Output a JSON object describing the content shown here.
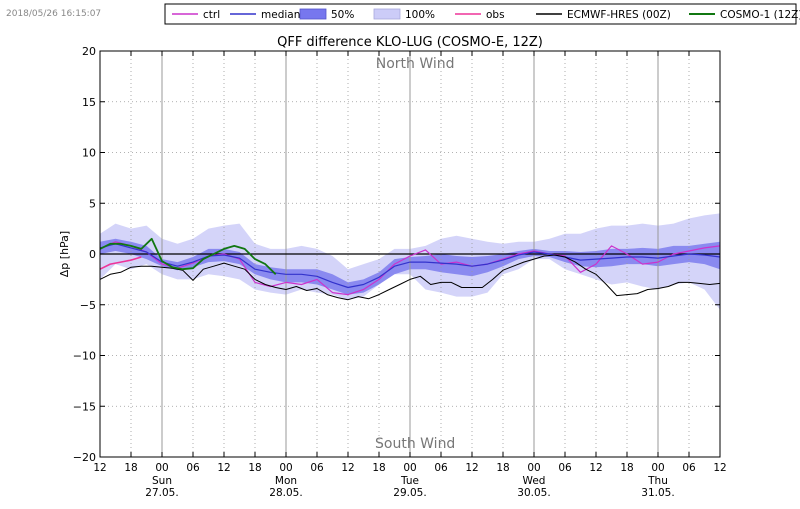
{
  "timestamp": "2018/05/26 16:15:07",
  "chart_data": {
    "type": "line",
    "title": "QFF difference KLO-LUG (COSMO-E, 12Z)",
    "ylabel": "Δp [hPa]",
    "ylim": [
      -20,
      20
    ],
    "yticks": [
      -20,
      -15,
      -10,
      -5,
      0,
      5,
      10,
      15,
      20
    ],
    "xlim": [
      0,
      120
    ],
    "x_unit": "hours since 26.05. 12Z",
    "xticks": [
      {
        "x": 0,
        "label": "12"
      },
      {
        "x": 6,
        "label": "18"
      },
      {
        "x": 12,
        "label": "00"
      },
      {
        "x": 18,
        "label": "06"
      },
      {
        "x": 24,
        "label": "12"
      },
      {
        "x": 30,
        "label": "18"
      },
      {
        "x": 36,
        "label": "00"
      },
      {
        "x": 42,
        "label": "06"
      },
      {
        "x": 48,
        "label": "12"
      },
      {
        "x": 54,
        "label": "18"
      },
      {
        "x": 60,
        "label": "00"
      },
      {
        "x": 66,
        "label": "06"
      },
      {
        "x": 72,
        "label": "12"
      },
      {
        "x": 78,
        "label": "18"
      },
      {
        "x": 84,
        "label": "00"
      },
      {
        "x": 90,
        "label": "06"
      },
      {
        "x": 96,
        "label": "12"
      },
      {
        "x": 102,
        "label": "18"
      },
      {
        "x": 108,
        "label": "00"
      },
      {
        "x": 114,
        "label": "06"
      },
      {
        "x": 120,
        "label": "12"
      }
    ],
    "day_labels": [
      {
        "x": 12,
        "day": "Sun",
        "date": "27.05."
      },
      {
        "x": 36,
        "day": "Mon",
        "date": "28.05."
      },
      {
        "x": 60,
        "day": "Tue",
        "date": "29.05."
      },
      {
        "x": 84,
        "day": "Wed",
        "date": "30.05."
      },
      {
        "x": 108,
        "day": "Thu",
        "date": "31.05."
      }
    ],
    "annotations": [
      {
        "text": "North Wind",
        "x": 61,
        "y": 18.8
      },
      {
        "text": "South Wind",
        "x": 61,
        "y": -18.6
      }
    ],
    "legend": {
      "placement": "top-right",
      "entries": [
        {
          "label": "ctrl",
          "kind": "line",
          "color": "#cc33cc"
        },
        {
          "label": "median",
          "kind": "line",
          "color": "#3333cc"
        },
        {
          "label": "50%",
          "kind": "patch",
          "color": "#7777ee"
        },
        {
          "label": "100%",
          "kind": "patch",
          "color": "#ccccf8"
        },
        {
          "label": "obs",
          "kind": "line",
          "color": "#ee3399"
        },
        {
          "label": "ECMWF-HRES (00Z)",
          "kind": "line",
          "color": "#000000"
        },
        {
          "label": "COSMO-1 (12Z)",
          "kind": "line",
          "color": "#117711"
        }
      ]
    },
    "band100": {
      "x": [
        0,
        3,
        6,
        9,
        12,
        15,
        18,
        21,
        24,
        27,
        30,
        33,
        36,
        39,
        42,
        45,
        48,
        51,
        54,
        57,
        60,
        63,
        66,
        69,
        72,
        75,
        78,
        81,
        84,
        87,
        90,
        93,
        96,
        99,
        102,
        105,
        108,
        111,
        114,
        117,
        120
      ],
      "upper": [
        2.0,
        3.0,
        2.5,
        2.8,
        1.5,
        1.0,
        1.5,
        2.5,
        2.8,
        3.0,
        1.0,
        0.5,
        0.5,
        0.8,
        0.5,
        -0.2,
        -1.5,
        -1.0,
        -0.5,
        0.5,
        0.5,
        0.8,
        1.5,
        1.8,
        1.5,
        1.2,
        1.0,
        1.2,
        1.2,
        1.5,
        2.0,
        2.0,
        2.5,
        2.8,
        2.8,
        3.0,
        2.8,
        3.0,
        3.5,
        3.8,
        4.0
      ],
      "lower": [
        -2.5,
        -1.0,
        -1.5,
        -1.0,
        -2.0,
        -2.5,
        -2.5,
        -2.0,
        -2.2,
        -2.5,
        -3.5,
        -3.8,
        -4.0,
        -3.5,
        -3.8,
        -4.0,
        -4.5,
        -4.2,
        -3.0,
        -2.0,
        -2.0,
        -3.5,
        -3.8,
        -4.2,
        -4.2,
        -3.8,
        -2.0,
        -1.5,
        -0.5,
        -0.5,
        -1.5,
        -2.0,
        -2.5,
        -3.0,
        -2.8,
        -3.2,
        -3.5,
        -3.0,
        -2.8,
        -3.5,
        -5.5
      ]
    },
    "band50": {
      "x": [
        0,
        3,
        6,
        9,
        12,
        15,
        18,
        21,
        24,
        27,
        30,
        33,
        36,
        39,
        42,
        45,
        48,
        51,
        54,
        57,
        60,
        63,
        66,
        69,
        72,
        75,
        78,
        81,
        84,
        87,
        90,
        93,
        96,
        99,
        102,
        105,
        108,
        111,
        114,
        117,
        120
      ],
      "upper": [
        1.2,
        1.5,
        1.2,
        0.8,
        -0.5,
        -0.8,
        -0.3,
        0.5,
        0.5,
        0.2,
        -1.0,
        -1.3,
        -1.5,
        -1.5,
        -1.5,
        -2.0,
        -2.8,
        -2.5,
        -1.8,
        -0.5,
        -0.3,
        -0.2,
        0.0,
        -0.2,
        -0.3,
        -0.2,
        0.0,
        0.3,
        0.5,
        0.3,
        0.3,
        0.2,
        0.3,
        0.5,
        0.5,
        0.6,
        0.5,
        0.8,
        0.8,
        1.0,
        1.2
      ],
      "lower": [
        0.0,
        0.3,
        0.0,
        -0.5,
        -1.2,
        -1.6,
        -1.3,
        -0.8,
        -0.7,
        -1.0,
        -2.0,
        -2.5,
        -2.8,
        -2.8,
        -3.0,
        -3.5,
        -4.0,
        -3.8,
        -3.0,
        -2.0,
        -1.5,
        -1.5,
        -1.8,
        -2.0,
        -2.2,
        -1.8,
        -1.2,
        -0.5,
        -0.2,
        -0.3,
        -0.8,
        -1.2,
        -1.3,
        -1.2,
        -1.0,
        -1.0,
        -1.2,
        -1.0,
        -0.8,
        -1.0,
        -1.5
      ]
    },
    "series": [
      {
        "name": "ctrl",
        "color": "#cc33cc",
        "width": 1.2,
        "x": [
          0,
          3,
          6,
          9,
          12,
          15,
          18,
          21,
          24,
          27,
          30,
          33,
          36,
          39,
          42,
          45,
          48,
          51,
          54,
          57,
          60,
          63,
          66,
          69,
          72,
          75,
          78,
          81,
          84,
          87,
          90,
          93,
          96,
          99,
          102,
          105,
          108,
          111,
          114,
          117,
          120
        ],
        "y": [
          0.5,
          1.2,
          0.8,
          0.2,
          -1.0,
          -1.4,
          -0.9,
          -0.2,
          0.0,
          -0.5,
          -2.8,
          -3.2,
          -2.8,
          -3.0,
          -2.5,
          -3.8,
          -4.0,
          -3.5,
          -2.5,
          -1.0,
          -0.2,
          0.4,
          -1.0,
          -0.8,
          -1.2,
          -1.0,
          -0.5,
          0.0,
          0.3,
          0.0,
          -0.2,
          -1.8,
          -1.0,
          0.8,
          0.0,
          -1.0,
          -0.8,
          0.0,
          0.3,
          0.6,
          0.8
        ]
      },
      {
        "name": "median",
        "color": "#3333cc",
        "width": 1.2,
        "x": [
          0,
          3,
          6,
          9,
          12,
          15,
          18,
          21,
          24,
          27,
          30,
          33,
          36,
          39,
          42,
          45,
          48,
          51,
          54,
          57,
          60,
          63,
          66,
          69,
          72,
          75,
          78,
          81,
          84,
          87,
          90,
          93,
          96,
          99,
          102,
          105,
          108,
          111,
          114,
          117,
          120
        ],
        "y": [
          0.6,
          1.0,
          0.6,
          0.2,
          -0.8,
          -1.2,
          -0.8,
          -0.2,
          -0.1,
          -0.4,
          -1.5,
          -1.8,
          -2.0,
          -2.0,
          -2.2,
          -2.8,
          -3.3,
          -3.0,
          -2.3,
          -1.2,
          -0.8,
          -0.8,
          -0.9,
          -1.0,
          -1.2,
          -1.0,
          -0.6,
          -0.1,
          0.2,
          0.0,
          -0.3,
          -0.6,
          -0.5,
          -0.4,
          -0.3,
          -0.3,
          -0.4,
          -0.2,
          0.0,
          -0.1,
          -0.3
        ]
      },
      {
        "name": "obs",
        "color": "#ee3399",
        "width": 1.6,
        "x": [
          0,
          2,
          4,
          6,
          8
        ],
        "y": [
          -1.5,
          -1.0,
          -0.8,
          -0.6,
          -0.3
        ]
      },
      {
        "name": "ECMWF-HRES (00Z)",
        "color": "#000000",
        "width": 1.0,
        "x": [
          0,
          2,
          4,
          6,
          8,
          10,
          12,
          14,
          16,
          18,
          20,
          22,
          24,
          26,
          28,
          30,
          32,
          34,
          36,
          38,
          40,
          42,
          44,
          46,
          48,
          50,
          52,
          54,
          56,
          58,
          60,
          62,
          64,
          66,
          68,
          70,
          72,
          74,
          76,
          78,
          80,
          82,
          84,
          86,
          88,
          90,
          92,
          94,
          96,
          98,
          100,
          102,
          104,
          106,
          108,
          110,
          112,
          114,
          116,
          118,
          120
        ],
        "y": [
          -2.5,
          -2.0,
          -1.8,
          -1.3,
          -1.2,
          -1.2,
          -1.3,
          -1.4,
          -1.6,
          -2.6,
          -1.5,
          -1.2,
          -0.9,
          -1.2,
          -1.5,
          -2.5,
          -3.0,
          -3.3,
          -3.5,
          -3.2,
          -3.6,
          -3.4,
          -4.0,
          -4.3,
          -4.5,
          -4.2,
          -4.4,
          -4.0,
          -3.5,
          -3.0,
          -2.5,
          -2.2,
          -3.0,
          -2.8,
          -2.8,
          -3.3,
          -3.3,
          -3.3,
          -2.5,
          -1.6,
          -1.2,
          -0.8,
          -0.5,
          -0.2,
          -0.1,
          -0.3,
          -0.8,
          -1.5,
          -2.0,
          -3.0,
          -4.1,
          -4.0,
          -3.9,
          -3.5,
          -3.4,
          -3.2,
          -2.8,
          -2.8,
          -2.9,
          -3.0,
          -2.9
        ]
      },
      {
        "name": "COSMO-1 (12Z)",
        "color": "#117711",
        "width": 1.8,
        "x": [
          0,
          2,
          4,
          6,
          8,
          10,
          12,
          14,
          16,
          18,
          20,
          22,
          24,
          26,
          28,
          30,
          32,
          34
        ],
        "y": [
          0.5,
          1.0,
          1.0,
          0.8,
          0.5,
          1.5,
          -0.7,
          -1.3,
          -1.5,
          -1.4,
          -0.5,
          0.0,
          0.5,
          0.8,
          0.5,
          -0.5,
          -1.0,
          -2.0
        ]
      }
    ],
    "hlines": [
      {
        "y": 0,
        "color": "#000000"
      }
    ],
    "vlines_solid": [
      12,
      36,
      60,
      84,
      108
    ]
  }
}
